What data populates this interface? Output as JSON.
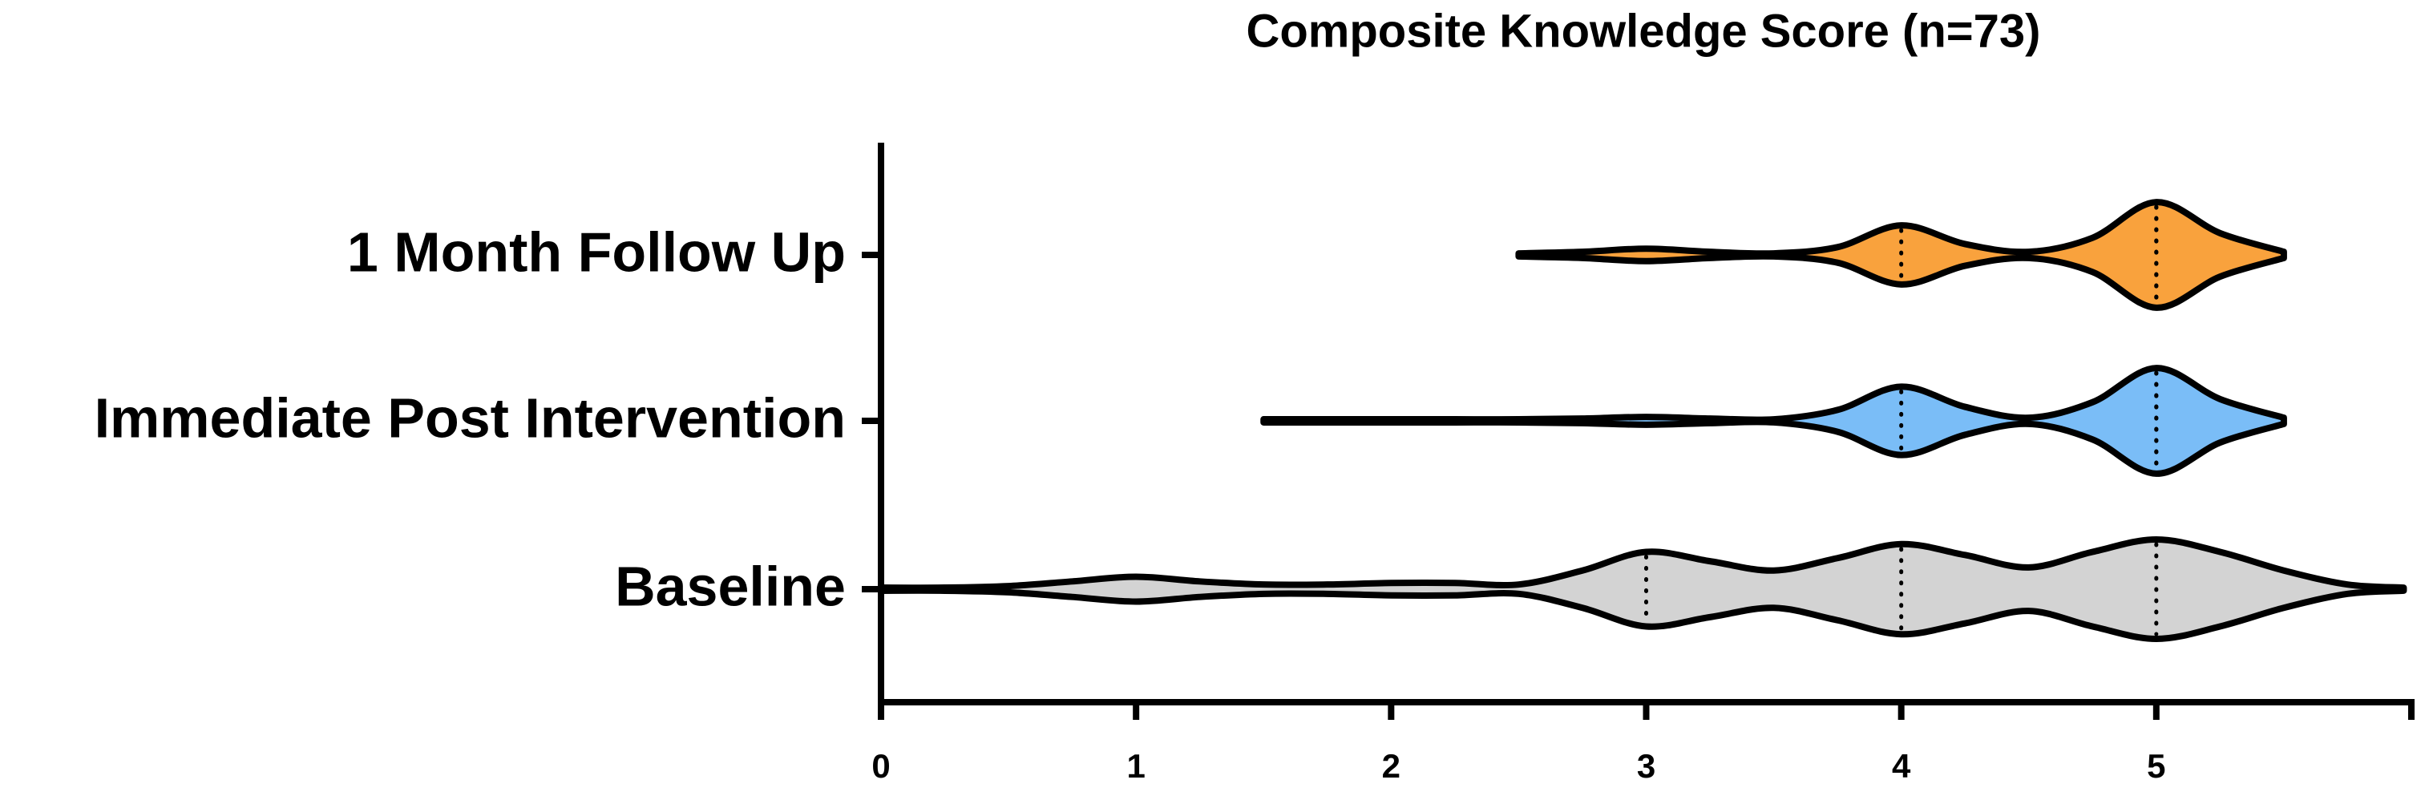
{
  "chart_data": {
    "type": "violin",
    "title": "Composite Knowledge Score (n=73)",
    "categories": [
      "Baseline",
      "Immediate Post Intervention",
      "1 Month Follow Up"
    ],
    "violins": [
      {
        "color": "#d3d3d3",
        "x": [
          0,
          0.25,
          0.5,
          0.75,
          1,
          1.25,
          1.5,
          1.75,
          2,
          2.25,
          2.5,
          2.75,
          3,
          3.25,
          3.5,
          3.75,
          4,
          4.25,
          4.5,
          4.75,
          5,
          5.25,
          5.5,
          5.75,
          5.97
        ],
        "density": [
          1,
          1,
          2,
          5,
          8,
          5,
          3,
          3,
          4,
          4,
          3,
          12,
          24,
          18,
          12,
          20,
          29,
          22,
          14,
          24,
          32,
          24,
          12,
          3,
          1
        ],
        "quartiles": [
          3,
          4,
          5
        ]
      },
      {
        "color": "#7abdf7",
        "x": [
          1.5,
          1.75,
          2,
          2.25,
          2.5,
          2.75,
          3,
          3.25,
          3.5,
          3.75,
          4,
          4.25,
          4.5,
          4.75,
          5,
          5.25,
          5.5
        ],
        "density": [
          1,
          1,
          1,
          1,
          1,
          1.5,
          2.5,
          1.5,
          1,
          7,
          22,
          9,
          2,
          12,
          34,
          14,
          2
        ],
        "quartiles": [
          4,
          5,
          5
        ]
      },
      {
        "color": "#f9a23d",
        "x": [
          2.5,
          2.75,
          3,
          3.25,
          3.5,
          3.75,
          4,
          4.25,
          4.5,
          4.75,
          5,
          5.25,
          5.5
        ],
        "density": [
          1,
          2,
          4,
          2,
          1,
          5,
          19,
          7,
          2,
          11,
          34,
          14,
          2
        ],
        "quartiles": [
          4,
          5,
          5
        ]
      }
    ],
    "xlim": [
      0,
      6
    ],
    "xticks": [
      0,
      1,
      2,
      3,
      4,
      5
    ]
  }
}
